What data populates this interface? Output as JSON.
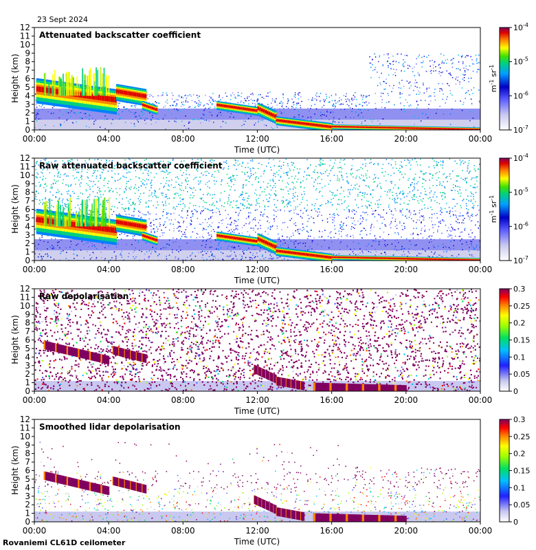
{
  "header": {
    "date": "23 Sept 2024"
  },
  "footer": {
    "station": "Rovaniemi CL61D ceilometer"
  },
  "chart_data": [
    {
      "type": "heatmap",
      "title": "Attenuated backscatter coefficient",
      "xlabel": "Time (UTC)",
      "ylabel": "Height (km)",
      "x_ticks": [
        "00:00",
        "04:00",
        "08:00",
        "12:00",
        "16:00",
        "20:00",
        "00:00"
      ],
      "y_ticks": [
        "0",
        "1",
        "2",
        "3",
        "4",
        "5",
        "6",
        "7",
        "8",
        "9",
        "10",
        "11",
        "12"
      ],
      "ylim": [
        0,
        12
      ],
      "xlim_hours": [
        0,
        24
      ],
      "colorbar": {
        "scale": "log",
        "units": "m-1 sr-1",
        "ticks": [
          "10^-7",
          "10^-6",
          "10^-5",
          "10^-4"
        ],
        "range": [
          1e-07,
          0.0001
        ]
      },
      "features": [
        {
          "label": "liquid cloud layer",
          "start_h": 0.0,
          "end_h": 4.4,
          "top_km_start": 4.6,
          "top_km_end": 3.8
        },
        {
          "label": "cloud layer",
          "start_h": 5.2,
          "end_h": 6.0,
          "top_km": 4.2
        },
        {
          "label": "cloud layer",
          "start_h": 10.0,
          "end_h": 12.8,
          "top_km": 2.7
        },
        {
          "label": "descending cloud base",
          "start_h": 12.8,
          "end_h": 24.0,
          "top_km_start": 2.0,
          "top_km_end": 0.1
        }
      ]
    },
    {
      "type": "heatmap",
      "title": "Raw attenuated backscatter coefficient",
      "xlabel": "Time (UTC)",
      "ylabel": "Height (km)",
      "x_ticks": [
        "00:00",
        "04:00",
        "08:00",
        "12:00",
        "16:00",
        "20:00",
        "00:00"
      ],
      "y_ticks": [
        "0",
        "1",
        "2",
        "3",
        "4",
        "5",
        "6",
        "7",
        "8",
        "9",
        "10",
        "11",
        "12"
      ],
      "ylim": [
        0,
        12
      ],
      "xlim_hours": [
        0,
        24
      ],
      "colorbar": {
        "scale": "log",
        "units": "m-1 sr-1",
        "ticks": [
          "10^-7",
          "10^-6",
          "10^-5",
          "10^-4"
        ],
        "range": [
          1e-07,
          0.0001
        ]
      }
    },
    {
      "type": "heatmap",
      "title": "Raw depolarisation",
      "xlabel": "Time (UTC)",
      "ylabel": "Height (km)",
      "x_ticks": [
        "00:00",
        "04:00",
        "08:00",
        "12:00",
        "16:00",
        "20:00",
        "00:00"
      ],
      "y_ticks": [
        "0",
        "1",
        "2",
        "3",
        "4",
        "5",
        "6",
        "7",
        "8",
        "9",
        "10",
        "11",
        "12"
      ],
      "ylim": [
        0,
        12
      ],
      "xlim_hours": [
        0,
        24
      ],
      "colorbar": {
        "scale": "linear",
        "units": "",
        "ticks": [
          "0",
          "0.05",
          "0.1",
          "0.15",
          "0.2",
          "0.25",
          "0.3"
        ],
        "range": [
          0,
          0.3
        ]
      }
    },
    {
      "type": "heatmap",
      "title": "Smoothed lidar depolarisation",
      "xlabel": "Time (UTC)",
      "ylabel": "Height (km)",
      "x_ticks": [
        "00:00",
        "04:00",
        "08:00",
        "12:00",
        "16:00",
        "20:00",
        "00:00"
      ],
      "y_ticks": [
        "0",
        "1",
        "2",
        "3",
        "4",
        "5",
        "6",
        "7",
        "8",
        "9",
        "10",
        "11",
        "12"
      ],
      "ylim": [
        0,
        12
      ],
      "xlim_hours": [
        0,
        24
      ],
      "colorbar": {
        "scale": "linear",
        "units": "",
        "ticks": [
          "0",
          "0.05",
          "0.1",
          "0.15",
          "0.2",
          "0.25",
          "0.3"
        ],
        "range": [
          0,
          0.3
        ]
      }
    }
  ]
}
